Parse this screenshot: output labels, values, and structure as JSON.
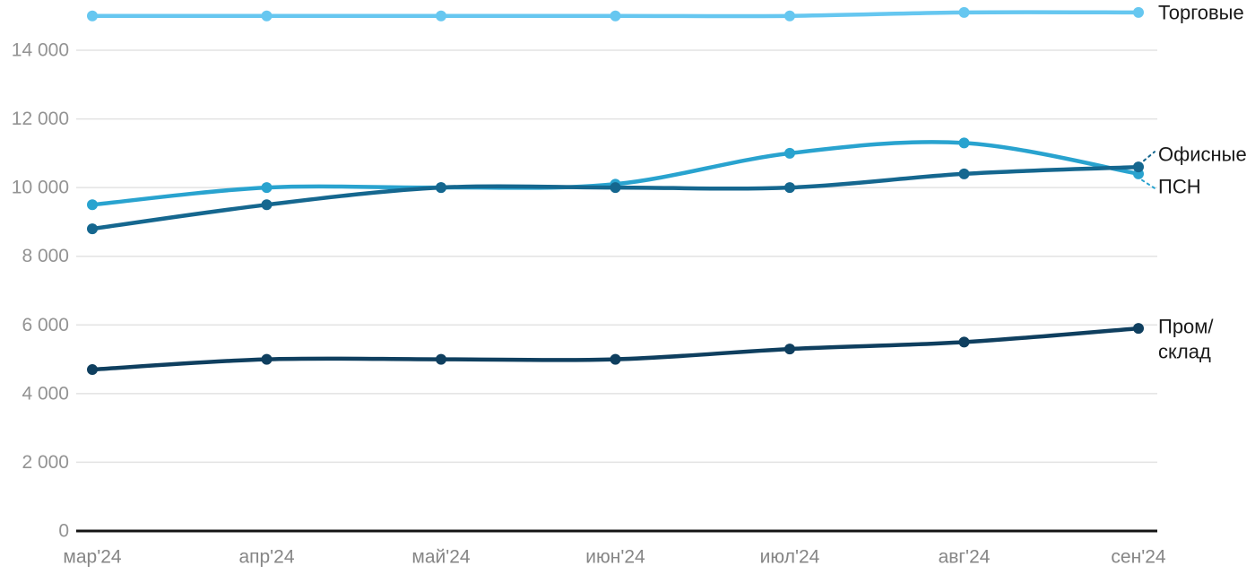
{
  "chart_data": {
    "type": "line",
    "title": "",
    "xlabel": "",
    "ylabel": "",
    "categories": [
      "мар'24",
      "апр'24",
      "май'24",
      "июн'24",
      "июл'24",
      "авг'24",
      "сен'24"
    ],
    "y_ticks": [
      {
        "label": "14 000",
        "value": 14000
      },
      {
        "label": "12 000",
        "value": 12000
      },
      {
        "label": "10 000",
        "value": 10000
      },
      {
        "label": "8 000",
        "value": 8000
      },
      {
        "label": "6 000",
        "value": 6000
      },
      {
        "label": "4 000",
        "value": 4000
      },
      {
        "label": "2 000",
        "value": 2000
      },
      {
        "label": "0",
        "value": 0
      }
    ],
    "ylim": [
      0,
      15400
    ],
    "grid": "horizontal",
    "legend_position": "right-end-labels",
    "series": [
      {
        "id": "retail",
        "label": "Торговые",
        "label_lines": [
          "Торговые"
        ],
        "color": "#66C7F0",
        "leader": false,
        "values": [
          15000,
          15000,
          15000,
          15000,
          15000,
          15100,
          15100
        ]
      },
      {
        "id": "psn",
        "label": "ПСН",
        "label_lines": [
          "ПСН"
        ],
        "color": "#29A3CF",
        "leader": true,
        "leader_side": "below",
        "values": [
          9500,
          10000,
          10000,
          10100,
          11000,
          11300,
          10400
        ]
      },
      {
        "id": "office",
        "label": "Офисные",
        "label_lines": [
          "Офисные"
        ],
        "color": "#15678F",
        "leader": true,
        "leader_side": "above",
        "values": [
          8800,
          9500,
          10000,
          10000,
          10000,
          10400,
          10600
        ]
      },
      {
        "id": "industrial",
        "label": "Пром/склад",
        "label_lines": [
          "Пром/",
          "склад"
        ],
        "color": "#0F3F5F",
        "leader": false,
        "values": [
          4700,
          5000,
          5000,
          5000,
          5300,
          5500,
          5900
        ]
      }
    ],
    "colors": {
      "grid": "#E3E3E3",
      "axis": "#141414",
      "y_tick_text": "#939393",
      "x_tick_text": "#868686",
      "series_label_text": "#1A1A1A"
    }
  }
}
